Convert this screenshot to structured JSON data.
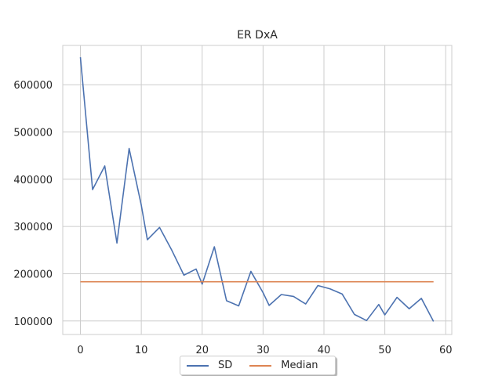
{
  "chart_data": {
    "type": "line",
    "title": "ER DxA",
    "xlabel": "",
    "ylabel": "",
    "xlim": [
      -2.9,
      61
    ],
    "ylim": [
      71500,
      683000
    ],
    "xticks": [
      0,
      10,
      20,
      30,
      40,
      50,
      60
    ],
    "yticks": [
      100000,
      200000,
      300000,
      400000,
      500000,
      600000
    ],
    "grid": true,
    "legend_position": "bottom-center",
    "series": [
      {
        "name": "SD",
        "color": "#4c72b0",
        "x": [
          0,
          2,
          4,
          6,
          8,
          10,
          11,
          13,
          15,
          17,
          19,
          20,
          22,
          24,
          26,
          28,
          30,
          31,
          33,
          35,
          37,
          39,
          41,
          43,
          45,
          47,
          49,
          50,
          52,
          54,
          56,
          58
        ],
        "y": [
          658000,
          378000,
          428000,
          265000,
          465000,
          345000,
          272000,
          298000,
          250000,
          197000,
          210000,
          178000,
          257000,
          143000,
          132000,
          205000,
          160000,
          133000,
          156000,
          152000,
          136000,
          175000,
          168000,
          157000,
          114000,
          101000,
          135000,
          113000,
          150000,
          126000,
          148000,
          99000
        ]
      },
      {
        "name": "Median",
        "color": "#dd8452",
        "x": [
          0,
          58
        ],
        "y": [
          183000,
          183000
        ]
      }
    ]
  }
}
